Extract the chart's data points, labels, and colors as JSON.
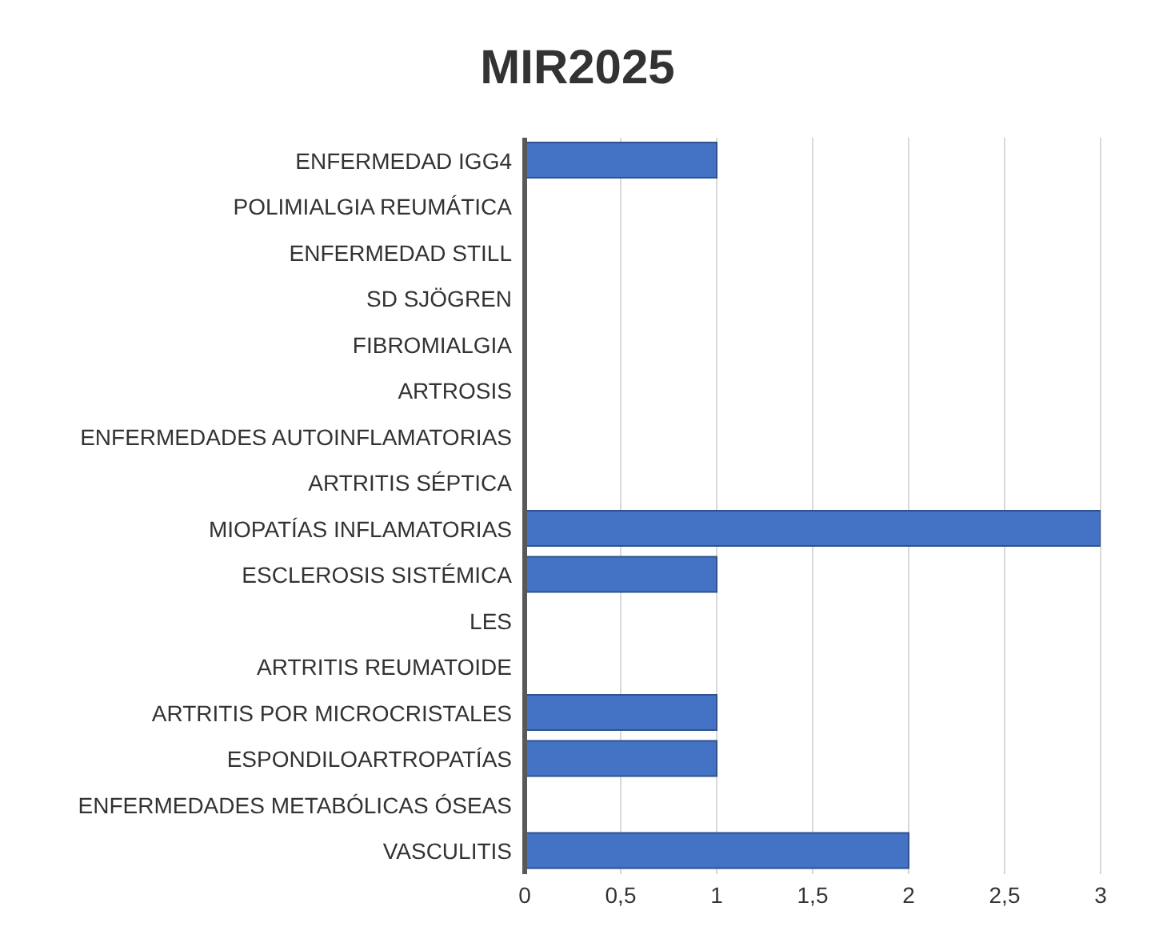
{
  "chart_data": {
    "type": "bar",
    "orientation": "horizontal",
    "title": "MIR2025",
    "categories": [
      "ENFERMEDAD IGG4",
      "POLIMIALGIA REUMÁTICA",
      "ENFERMEDAD STILL",
      "SD SJÖGREN",
      "FIBROMIALGIA",
      "ARTROSIS",
      "ENFERMEDADES AUTOINFLAMATORIAS",
      "ARTRITIS SÉPTICA",
      "MIOPATÍAS INFLAMATORIAS",
      "ESCLEROSIS SISTÉMICA",
      "LES",
      "ARTRITIS REUMATOIDE",
      "ARTRITIS POR MICROCRISTALES",
      "ESPONDILOARTROPATÍAS",
      "ENFERMEDADES METABÓLICAS ÓSEAS",
      "VASCULITIS"
    ],
    "values": [
      1,
      0,
      0,
      0,
      0,
      0,
      0,
      0,
      3,
      1,
      0,
      0,
      1,
      1,
      0,
      2
    ],
    "color": "#4472c4",
    "xlim": [
      0,
      3
    ],
    "xticks": [
      0,
      {
        "value": 0.5,
        "label": "0,5"
      },
      1,
      {
        "value": 1.5,
        "label": "1,5"
      },
      2,
      {
        "value": 2.5,
        "label": "2,5"
      },
      3
    ],
    "grid": "x"
  }
}
